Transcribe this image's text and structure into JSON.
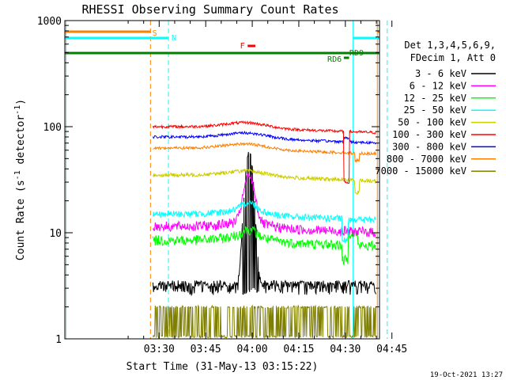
{
  "chart_data": {
    "type": "line",
    "title": "RHESSI Observing Summary Count Rates",
    "xlabel": "Start Time (31-May-13 03:15:22)",
    "ylabel_main": "Count Rate (s",
    "ylabel_sup1": "-1",
    "ylabel_mid": " detector",
    "ylabel_sup2": "-1",
    "ylabel_end": ")",
    "y_scale": "log",
    "ylim": [
      1,
      1000
    ],
    "xlim_minutes": [
      -15.4,
      86
    ],
    "x_ticks": [
      {
        "label": "03:30",
        "minutes": 15
      },
      {
        "label": "03:45",
        "minutes": 30
      },
      {
        "label": "04:00",
        "minutes": 45
      },
      {
        "label": "04:15",
        "minutes": 60
      },
      {
        "label": "04:30",
        "minutes": 75
      },
      {
        "label": "04:45",
        "minutes": 90
      }
    ],
    "y_ticks": [
      {
        "label": "1000",
        "value": 1000
      },
      {
        "label": "100",
        "value": 100
      },
      {
        "label": "10",
        "value": 10
      },
      {
        "label": "1",
        "value": 1
      }
    ],
    "legend_header": [
      "Det 1,3,4,5,6,9,",
      "FDecim 1, Att 0"
    ],
    "legend_position": "right",
    "series": [
      {
        "name": "3 - 6 keV",
        "color": "#000000"
      },
      {
        "name": "6 - 12 keV",
        "color": "#ff00ff"
      },
      {
        "name": "12 - 25 keV",
        "color": "#00ff00"
      },
      {
        "name": "25 - 50 keV",
        "color": "#00ffff"
      },
      {
        "name": "50 - 100 keV",
        "color": "#cccc00"
      },
      {
        "name": "100 - 300 keV",
        "color": "#ff0000"
      },
      {
        "name": "300 - 800 keV",
        "color": "#0000ff"
      },
      {
        "name": "800 - 7000 keV",
        "color": "#ff8000"
      },
      {
        "name": "7000 - 15000 keV",
        "color": "#808000"
      }
    ],
    "flags": [
      {
        "label": "S",
        "color": "#ff8000"
      },
      {
        "label": "N",
        "color": "#00ffff"
      },
      {
        "label": "F",
        "color": "#ff0000"
      },
      {
        "label": "RD9",
        "color": "#008000"
      },
      {
        "label": "RD6",
        "color": "#008000"
      }
    ],
    "footer": "19-Oct-2021 13:27"
  }
}
